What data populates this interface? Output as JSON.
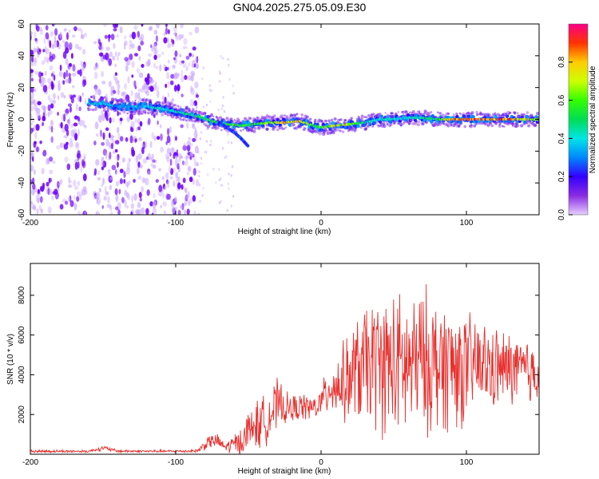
{
  "figure_title": "GN04.2025.275.05.09.E30",
  "colors": {
    "line": "#e8312f",
    "scatter_purple": "#6d00ff",
    "scatter_light": "#c9a6ff",
    "frame": "#000000"
  },
  "chart_data": [
    {
      "type": "heatmap",
      "title": "GN04.2025.275.05.09.E30",
      "xlabel": "Height of straight line (km)",
      "ylabel": "Frequency (Hz)",
      "xlim": [
        -200,
        150
      ],
      "ylim": [
        -60,
        60
      ],
      "xticks": [
        -200,
        -100,
        0,
        100
      ],
      "xtick_labels": [
        "-200",
        "-100",
        "0",
        "100"
      ],
      "yticks": [
        -60,
        -40,
        -20,
        0,
        20,
        40,
        60
      ],
      "ytick_labels": [
        "-60",
        "-40",
        "-20",
        "0",
        "20",
        "40",
        "60"
      ],
      "ridge": {
        "description_units": "frequency (Hz) of the strongest spectral amplitude versus height",
        "x": [
          -160,
          -150,
          -140,
          -120,
          -105,
          -95,
          -85,
          -75,
          -65,
          -55,
          -45,
          -35,
          -25,
          -15,
          -5,
          0,
          10,
          20,
          30,
          40,
          50,
          60,
          70,
          80,
          90,
          100,
          110,
          120,
          130,
          140,
          150
        ],
        "y": [
          10,
          10,
          8,
          8,
          6,
          4,
          2,
          -1,
          -3,
          -4,
          -3,
          -2,
          -2,
          -1,
          -4,
          -5,
          -4,
          -3,
          -2,
          0,
          0,
          1,
          1,
          0,
          0,
          0,
          0,
          0,
          0,
          0,
          0
        ],
        "amplitude": [
          0.45,
          0.4,
          0.35,
          0.4,
          0.45,
          0.5,
          0.55,
          0.55,
          0.6,
          0.65,
          0.6,
          0.7,
          0.9,
          0.85,
          0.6,
          0.65,
          0.8,
          0.7,
          0.5,
          0.45,
          0.45,
          0.45,
          0.5,
          0.55,
          0.9,
          0.95,
          0.95,
          0.95,
          0.9,
          0.85,
          0.7
        ]
      },
      "side_branch": {
        "x": [
          -70,
          -60,
          -55,
          -50
        ],
        "y": [
          -2,
          -8,
          -12,
          -17
        ]
      },
      "noise_region": {
        "xmin": -200,
        "xmax": -85,
        "ymin": -60,
        "ymax": 60,
        "amplitude_range": [
          0.0,
          0.25
        ]
      },
      "colorbar": {
        "label": "Normalized spectral amplitude",
        "range": [
          0,
          1
        ],
        "ticks": [
          0.0,
          0.2,
          0.4,
          0.6,
          0.8
        ],
        "tick_labels": [
          "0.0",
          "0.2",
          "0.4",
          "0.6",
          "0.8"
        ]
      }
    },
    {
      "type": "line",
      "xlabel": "Height of straight line (km)",
      "ylabel": "SNR (10 * v/v)",
      "xlim": [
        -200,
        150
      ],
      "ylim": [
        0,
        9600
      ],
      "xticks": [
        -200,
        -100,
        0,
        100
      ],
      "xtick_labels": [
        "-200",
        "-100",
        "0",
        "100"
      ],
      "yticks": [
        2000,
        4000,
        6000,
        8000
      ],
      "ytick_labels": [
        "2000",
        "4000",
        "6000",
        "8000"
      ],
      "series": [
        {
          "name": "SNR",
          "x": [
            -200,
            -180,
            -160,
            -150,
            -140,
            -120,
            -100,
            -85,
            -78,
            -72,
            -66,
            -60,
            -54,
            -48,
            -42,
            -36,
            -30,
            -24,
            -18,
            -12,
            -6,
            0,
            6,
            12,
            18,
            24,
            30,
            36,
            42,
            48,
            54,
            60,
            66,
            72,
            78,
            84,
            90,
            96,
            102,
            108,
            114,
            120,
            126,
            132,
            138,
            144,
            150
          ],
          "mean": [
            150,
            150,
            150,
            320,
            160,
            150,
            150,
            170,
            600,
            700,
            350,
            500,
            700,
            1400,
            1500,
            1900,
            2500,
            2300,
            2300,
            2400,
            2300,
            2600,
            3400,
            3500,
            3700,
            4200,
            4400,
            4600,
            4500,
            4500,
            4300,
            4400,
            4600,
            4700,
            4500,
            4500,
            4500,
            4300,
            4400,
            4500,
            4400,
            4300,
            4300,
            4300,
            4200,
            4100,
            4200
          ],
          "spread": [
            80,
            80,
            80,
            150,
            80,
            80,
            80,
            100,
            400,
            400,
            300,
            600,
            900,
            1300,
            1500,
            1400,
            1500,
            900,
            800,
            800,
            700,
            900,
            1500,
            2000,
            2500,
            3000,
            3500,
            3800,
            4000,
            4200,
            4300,
            4200,
            4000,
            4200,
            4000,
            3800,
            3800,
            3500,
            3000,
            2800,
            2500,
            2400,
            2200,
            2100,
            2000,
            2000,
            1800
          ]
        }
      ]
    }
  ]
}
